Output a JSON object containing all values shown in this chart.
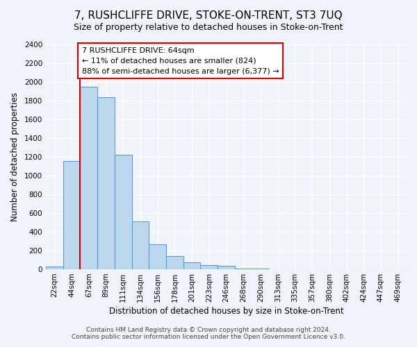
{
  "title": "7, RUSHCLIFFE DRIVE, STOKE-ON-TRENT, ST3 7UQ",
  "subtitle": "Size of property relative to detached houses in Stoke-on-Trent",
  "xlabel": "Distribution of detached houses by size in Stoke-on-Trent",
  "ylabel": "Number of detached properties",
  "bar_labels": [
    "22sqm",
    "44sqm",
    "67sqm",
    "89sqm",
    "111sqm",
    "134sqm",
    "156sqm",
    "178sqm",
    "201sqm",
    "223sqm",
    "246sqm",
    "268sqm",
    "290sqm",
    "313sqm",
    "335sqm",
    "357sqm",
    "380sqm",
    "402sqm",
    "424sqm",
    "447sqm",
    "469sqm"
  ],
  "bar_values": [
    30,
    1155,
    1950,
    1835,
    1225,
    515,
    265,
    140,
    75,
    45,
    40,
    8,
    5,
    3,
    2,
    2,
    1,
    1,
    0,
    0,
    0
  ],
  "bar_color": "#bdd7ee",
  "bar_edge_color": "#5b9bd5",
  "vline_x_index": 2,
  "vline_color": "#cc0000",
  "annotation_title": "7 RUSHCLIFFE DRIVE: 64sqm",
  "annotation_line1": "← 11% of detached houses are smaller (824)",
  "annotation_line2": "88% of semi-detached houses are larger (6,377) →",
  "annotation_box_edge": "#cc0000",
  "ylim": [
    0,
    2400
  ],
  "yticks": [
    0,
    200,
    400,
    600,
    800,
    1000,
    1200,
    1400,
    1600,
    1800,
    2000,
    2200,
    2400
  ],
  "footer_line1": "Contains HM Land Registry data © Crown copyright and database right 2024.",
  "footer_line2": "Contains public sector information licensed under the Open Government Licence v3.0.",
  "bg_color": "#f0f4fa",
  "plot_bg_color": "#f0f4fa",
  "grid_color": "#ffffff",
  "title_fontsize": 11,
  "subtitle_fontsize": 9,
  "axis_label_fontsize": 8.5,
  "tick_fontsize": 7.5,
  "annotation_fontsize": 8,
  "footer_fontsize": 6.5
}
